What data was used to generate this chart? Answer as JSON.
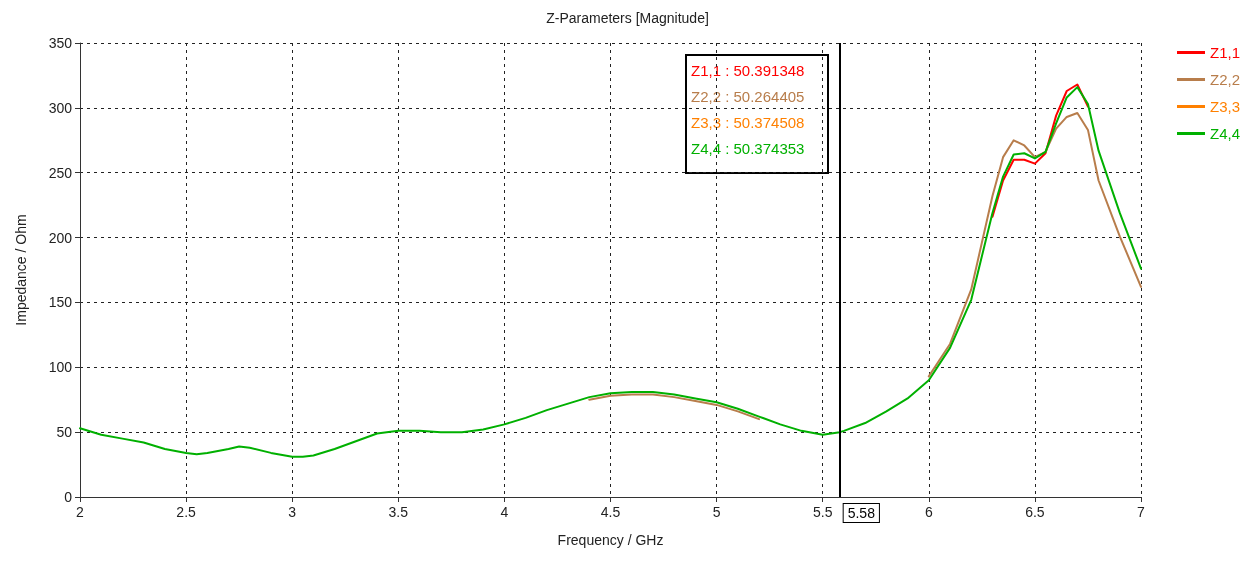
{
  "chart_data": {
    "type": "line",
    "title": "Z-Parameters [Magnitude]",
    "xlabel": "Frequency / GHz",
    "ylabel": "Impedance / Ohm",
    "x": [
      2.0,
      2.1,
      2.2,
      2.3,
      2.4,
      2.5,
      2.55,
      2.6,
      2.7,
      2.75,
      2.8,
      2.9,
      3.0,
      3.05,
      3.1,
      3.2,
      3.3,
      3.4,
      3.5,
      3.6,
      3.7,
      3.8,
      3.9,
      4.0,
      4.1,
      4.2,
      4.3,
      4.4,
      4.5,
      4.6,
      4.7,
      4.8,
      4.9,
      5.0,
      5.1,
      5.2,
      5.3,
      5.4,
      5.5,
      5.58,
      5.6,
      5.7,
      5.8,
      5.9,
      6.0,
      6.1,
      6.2,
      6.3,
      6.35,
      6.4,
      6.45,
      6.5,
      6.55,
      6.6,
      6.65,
      6.7,
      6.75,
      6.8,
      6.9,
      7.0
    ],
    "series": [
      {
        "name": "Z1,1",
        "color": "#ff0000",
        "values": [
          null,
          null,
          null,
          null,
          null,
          null,
          null,
          null,
          null,
          null,
          null,
          null,
          null,
          null,
          null,
          null,
          null,
          null,
          null,
          null,
          null,
          null,
          null,
          null,
          null,
          null,
          null,
          null,
          null,
          null,
          null,
          null,
          null,
          null,
          null,
          null,
          null,
          null,
          null,
          null,
          null,
          null,
          null,
          null,
          null,
          null,
          null,
          216,
          244,
          260,
          260,
          257,
          265,
          294,
          313,
          318,
          301,
          null,
          null,
          null
        ]
      },
      {
        "name": "Z2,2",
        "color": "#b87d4b",
        "values": [
          null,
          null,
          null,
          null,
          null,
          null,
          null,
          null,
          null,
          null,
          null,
          null,
          null,
          null,
          null,
          null,
          null,
          null,
          null,
          null,
          null,
          null,
          null,
          null,
          null,
          null,
          null,
          75,
          78,
          79,
          79,
          77,
          74,
          71,
          66,
          60,
          null,
          null,
          null,
          null,
          null,
          null,
          null,
          null,
          93,
          118,
          160,
          232,
          262,
          275,
          271,
          262,
          266,
          284,
          293,
          296,
          283,
          244,
          201,
          162
        ]
      },
      {
        "name": "Z3,3",
        "color": "#ff8000",
        "values": [
          null,
          null,
          null,
          null,
          null,
          null,
          null,
          null,
          null,
          null,
          null,
          null,
          null,
          null,
          null,
          null,
          null,
          null,
          null,
          null,
          null,
          null,
          null,
          null,
          null,
          null,
          null,
          null,
          null,
          null,
          null,
          null,
          null,
          null,
          null,
          null,
          null,
          null,
          null,
          null,
          null,
          null,
          null,
          null,
          null,
          null,
          null,
          null,
          null,
          null,
          null,
          null,
          null,
          null,
          null,
          null,
          null,
          null,
          null,
          null
        ]
      },
      {
        "name": "Z4,4",
        "color": "#00b000",
        "values": [
          53,
          48,
          45,
          42,
          37,
          34,
          33,
          34,
          37,
          39,
          38,
          34,
          31,
          31,
          32,
          37,
          43,
          49,
          51,
          51,
          50,
          50,
          52,
          56,
          61,
          67,
          72,
          77,
          80,
          81,
          81,
          79,
          76,
          73,
          68,
          62,
          56,
          51,
          48,
          50,
          51,
          57,
          66,
          76,
          90,
          115,
          152,
          219,
          247,
          264,
          265,
          261,
          266,
          288,
          308,
          316,
          303,
          267,
          219,
          176
        ]
      }
    ],
    "xlim": [
      2,
      7
    ],
    "xticks": [
      2,
      2.5,
      3,
      3.5,
      4,
      4.5,
      5,
      5.5,
      6,
      6.5,
      7
    ],
    "ylim": [
      0,
      350
    ],
    "yticks": [
      0,
      50,
      100,
      150,
      200,
      250,
      300,
      350
    ],
    "ref_lines": [
      {
        "axis": "x",
        "value": 5.58,
        "label": "5.58",
        "color": "#000000",
        "line_style": "solid"
      }
    ],
    "annotations": [
      "Z1,1 : 50.391348",
      "Z2,2 : 50.264405",
      "Z3,3 : 50.374508",
      "Z4,4 : 50.374353"
    ],
    "grid": true,
    "legend": "top right",
    "marker": "none",
    "line_style": "solid"
  }
}
